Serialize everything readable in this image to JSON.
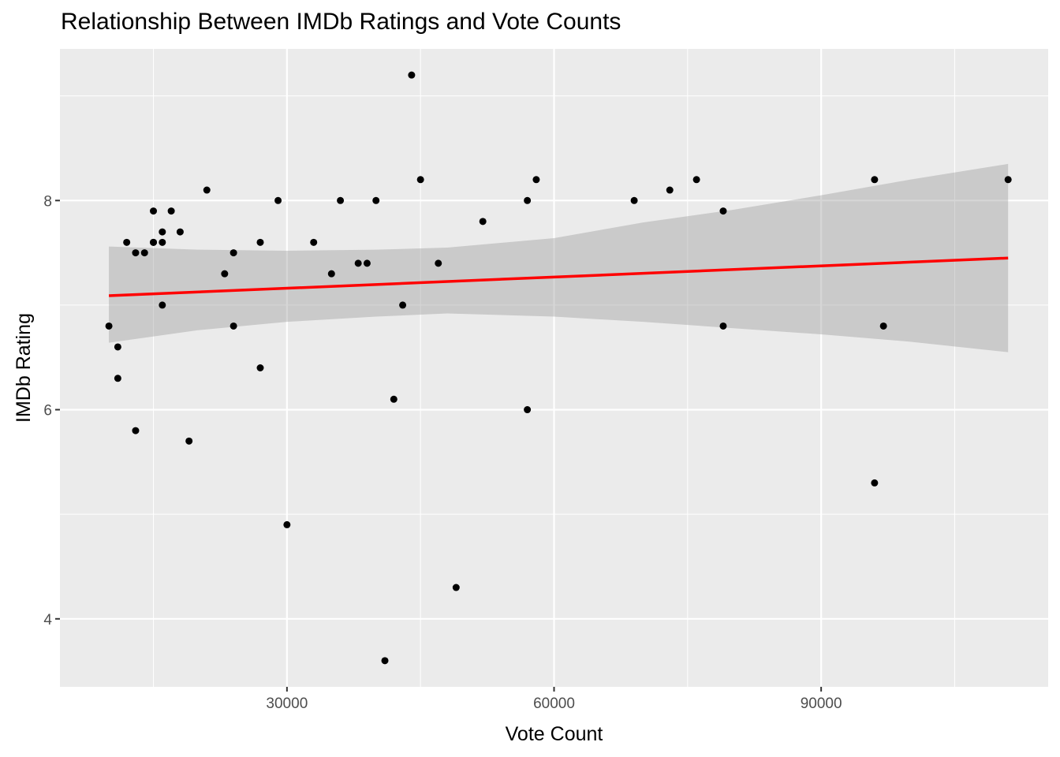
{
  "chart_data": {
    "type": "scatter",
    "title": "Relationship Between IMDb Ratings and Vote Counts",
    "xlabel": "Vote Count",
    "ylabel": "IMDb Rating",
    "xlim": [
      4500,
      115500
    ],
    "ylim": [
      3.35,
      9.45
    ],
    "x_ticks": [
      30000,
      60000,
      90000
    ],
    "x_tick_labels": [
      "30000",
      "60000",
      "90000"
    ],
    "y_ticks": [
      4,
      6,
      8
    ],
    "y_tick_labels": [
      "4",
      "6",
      "8"
    ],
    "grid": true,
    "legend": "none",
    "points": [
      {
        "x": 10000,
        "y": 6.8
      },
      {
        "x": 11000,
        "y": 6.6
      },
      {
        "x": 11000,
        "y": 6.3
      },
      {
        "x": 12000,
        "y": 7.6
      },
      {
        "x": 13000,
        "y": 7.5
      },
      {
        "x": 13000,
        "y": 5.8
      },
      {
        "x": 14000,
        "y": 7.5
      },
      {
        "x": 15000,
        "y": 7.9
      },
      {
        "x": 15000,
        "y": 7.6
      },
      {
        "x": 15000,
        "y": 7.6
      },
      {
        "x": 16000,
        "y": 7.7
      },
      {
        "x": 16000,
        "y": 7.6
      },
      {
        "x": 16000,
        "y": 7.0
      },
      {
        "x": 17000,
        "y": 7.9
      },
      {
        "x": 18000,
        "y": 7.7
      },
      {
        "x": 19000,
        "y": 5.7
      },
      {
        "x": 21000,
        "y": 8.1
      },
      {
        "x": 23000,
        "y": 7.3
      },
      {
        "x": 24000,
        "y": 7.5
      },
      {
        "x": 24000,
        "y": 6.8
      },
      {
        "x": 27000,
        "y": 7.6
      },
      {
        "x": 27000,
        "y": 6.4
      },
      {
        "x": 29000,
        "y": 8.0
      },
      {
        "x": 30000,
        "y": 4.9
      },
      {
        "x": 33000,
        "y": 7.6
      },
      {
        "x": 35000,
        "y": 7.3
      },
      {
        "x": 36000,
        "y": 8.0
      },
      {
        "x": 38000,
        "y": 7.4
      },
      {
        "x": 39000,
        "y": 7.4
      },
      {
        "x": 40000,
        "y": 8.0
      },
      {
        "x": 41000,
        "y": 3.6
      },
      {
        "x": 42000,
        "y": 6.1
      },
      {
        "x": 43000,
        "y": 7.0
      },
      {
        "x": 44000,
        "y": 9.2
      },
      {
        "x": 45000,
        "y": 8.2
      },
      {
        "x": 47000,
        "y": 7.4
      },
      {
        "x": 49000,
        "y": 4.3
      },
      {
        "x": 52000,
        "y": 7.8
      },
      {
        "x": 57000,
        "y": 8.0
      },
      {
        "x": 57000,
        "y": 6.0
      },
      {
        "x": 58000,
        "y": 8.2
      },
      {
        "x": 69000,
        "y": 8.0
      },
      {
        "x": 73000,
        "y": 8.1
      },
      {
        "x": 76000,
        "y": 8.2
      },
      {
        "x": 79000,
        "y": 7.9
      },
      {
        "x": 79000,
        "y": 6.8
      },
      {
        "x": 96000,
        "y": 8.2
      },
      {
        "x": 96000,
        "y": 5.3
      },
      {
        "x": 97000,
        "y": 6.8
      },
      {
        "x": 111000,
        "y": 8.2
      }
    ],
    "fit_line": {
      "method": "linear",
      "color": "#ff0000",
      "x": [
        10000,
        111000
      ],
      "y": [
        7.09,
        7.45
      ]
    },
    "confidence_band": {
      "color": "#999999",
      "x": [
        10000,
        20000,
        30000,
        40000,
        48000,
        60000,
        70000,
        80000,
        90000,
        100000,
        111000
      ],
      "lower": [
        6.64,
        6.76,
        6.84,
        6.89,
        6.92,
        6.89,
        6.84,
        6.78,
        6.72,
        6.65,
        6.55
      ],
      "upper": [
        7.56,
        7.53,
        7.52,
        7.53,
        7.55,
        7.64,
        7.79,
        7.91,
        8.05,
        8.2,
        8.35
      ]
    },
    "colors": {
      "panel_background": "#ebebeb",
      "grid": "#ffffff",
      "point": "#000000"
    }
  }
}
